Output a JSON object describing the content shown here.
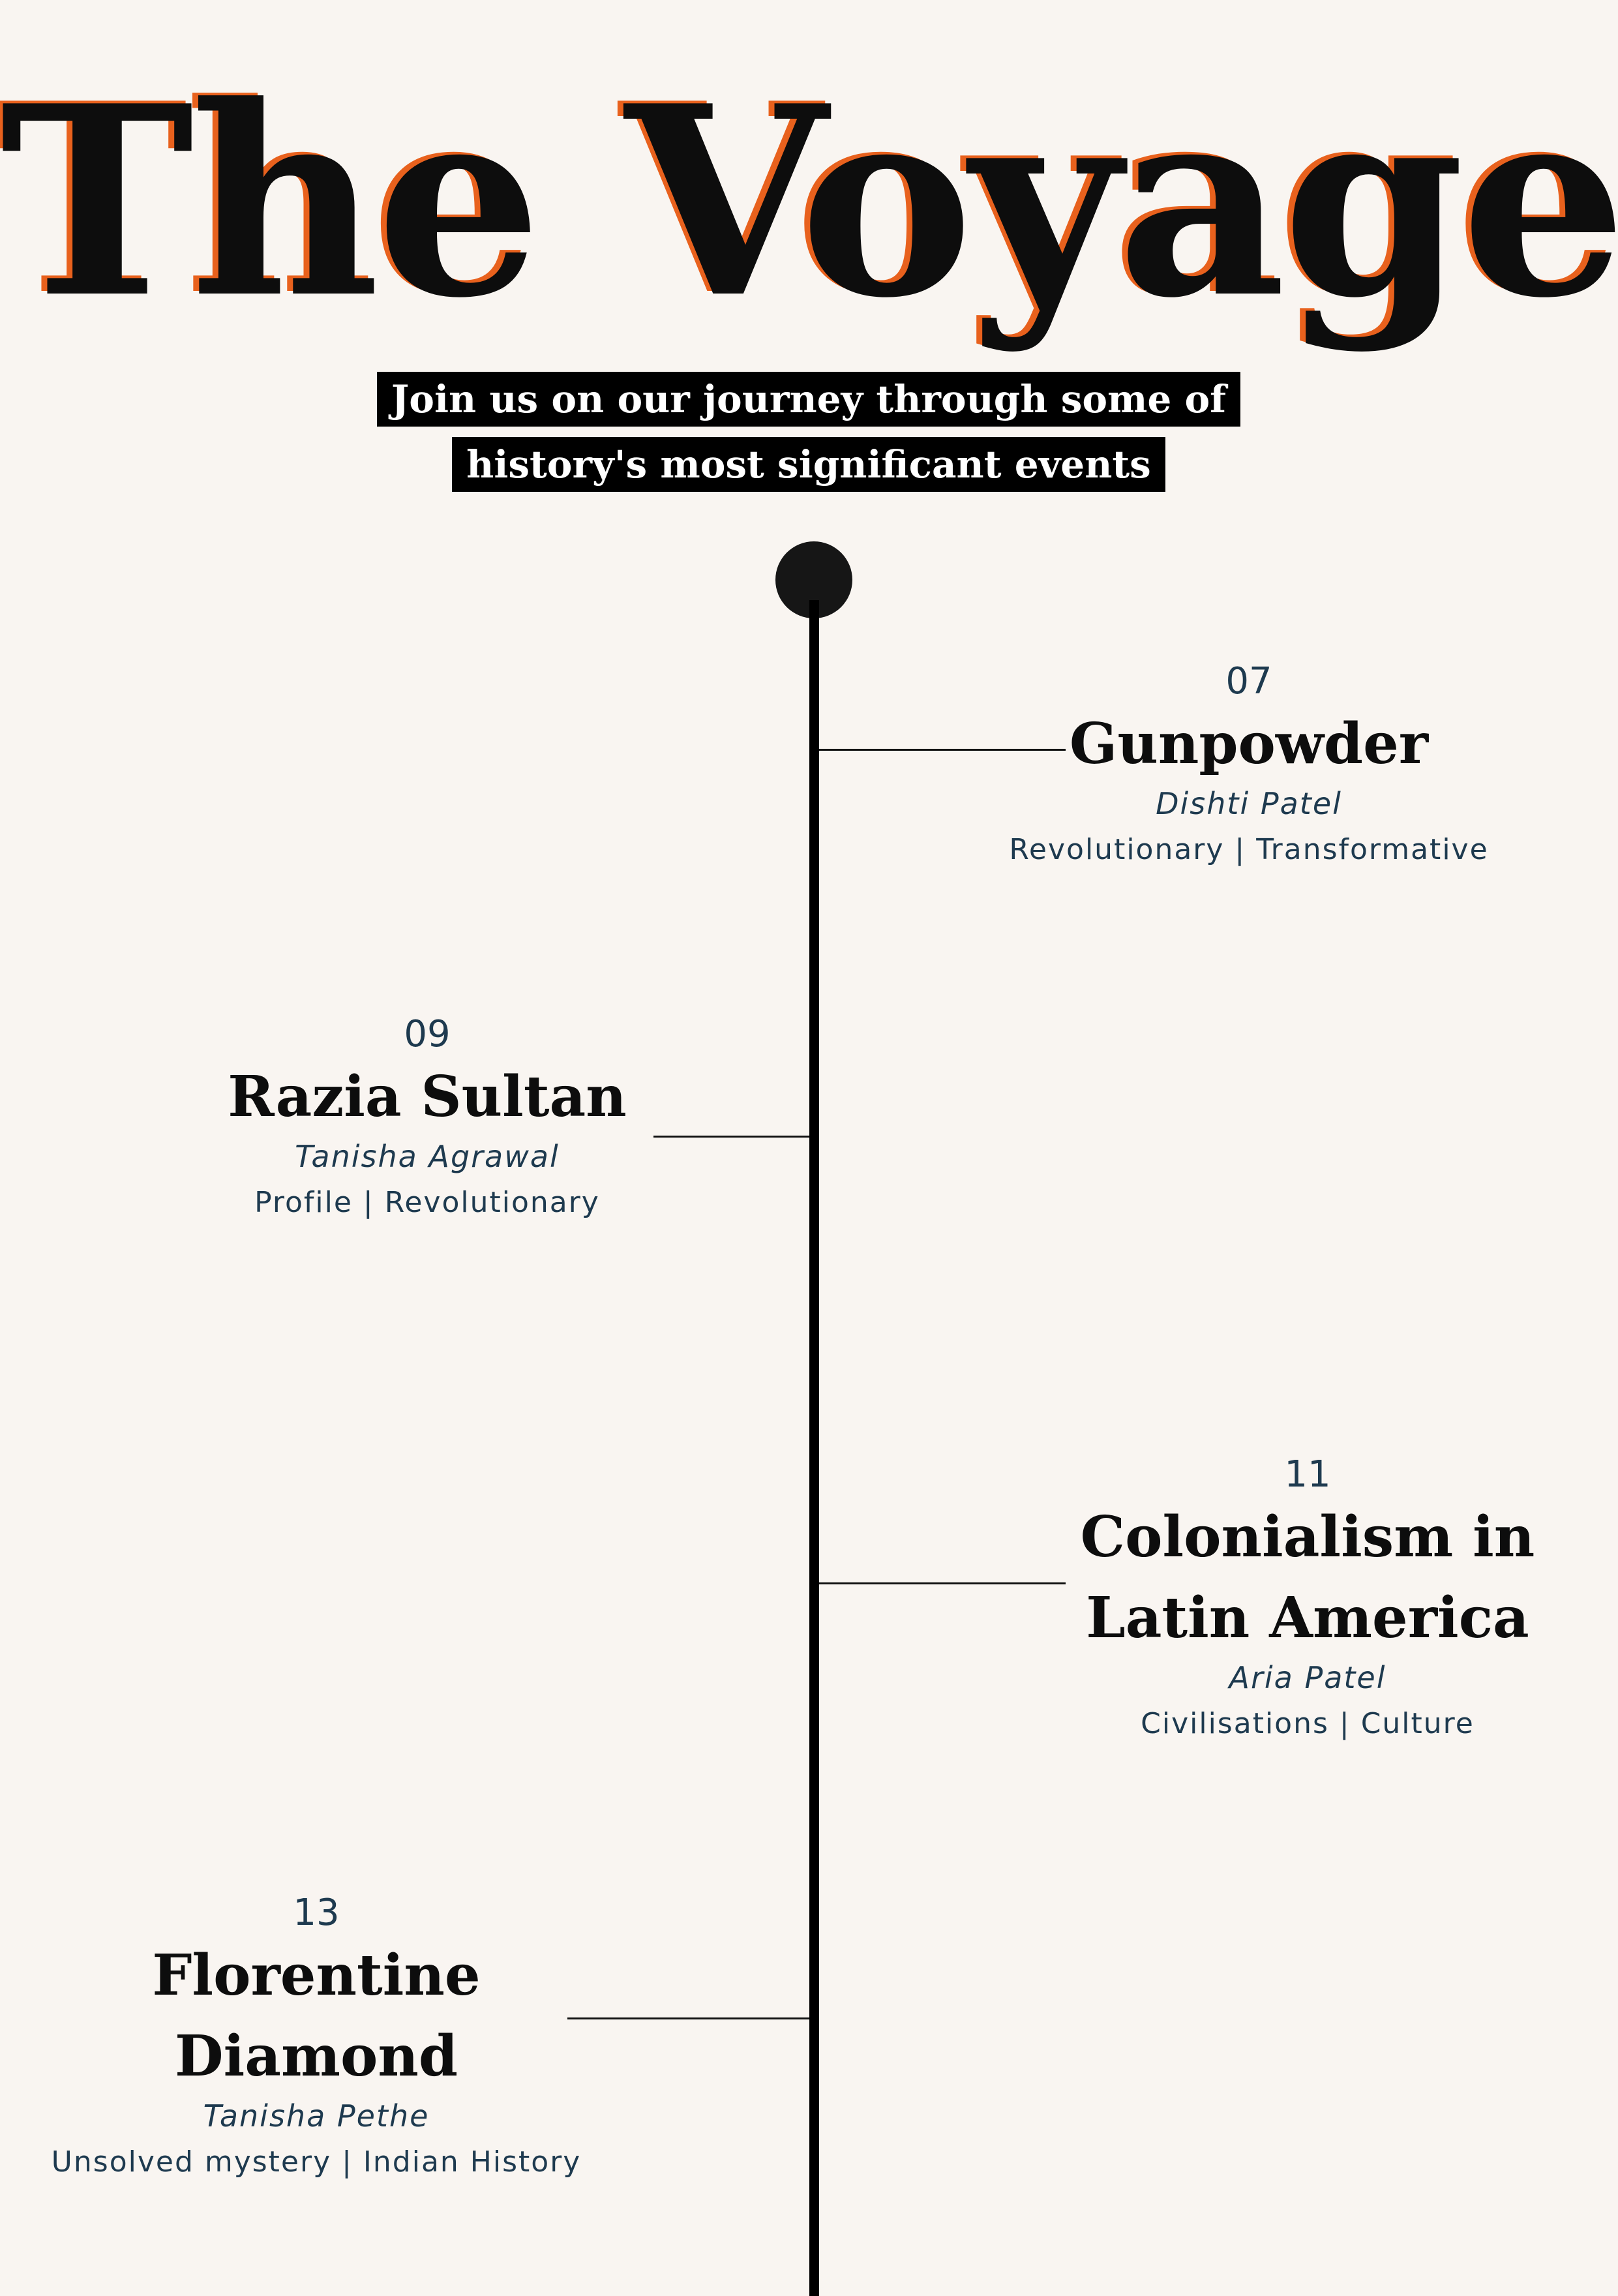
{
  "header": {
    "title": "The Voyage",
    "subtitle_line1": "Join us on our journey through some of",
    "subtitle_line2": "history's most significant events"
  },
  "colors": {
    "background": "#f9f5f1",
    "accent": "#e8611d",
    "text_dark": "#0d0d0d",
    "text_muted": "#1e3a4f"
  },
  "timeline": {
    "entries": [
      {
        "number": "07",
        "title_line1": "Gunpowder",
        "title_line2": "",
        "author": "Dishti Patel",
        "tags": "Revolutionary | Transformative"
      },
      {
        "number": "09",
        "title_line1": "Razia Sultan",
        "title_line2": "",
        "author": "Tanisha Agrawal",
        "tags": "Profile | Revolutionary"
      },
      {
        "number": "11",
        "title_line1": "Colonialism in",
        "title_line2": "Latin America",
        "author": "Aria Patel",
        "tags": "Civilisations | Culture"
      },
      {
        "number": "13",
        "title_line1": "Florentine",
        "title_line2": "Diamond",
        "author": "Tanisha Pethe",
        "tags": "Unsolved mystery | Indian History"
      }
    ]
  }
}
